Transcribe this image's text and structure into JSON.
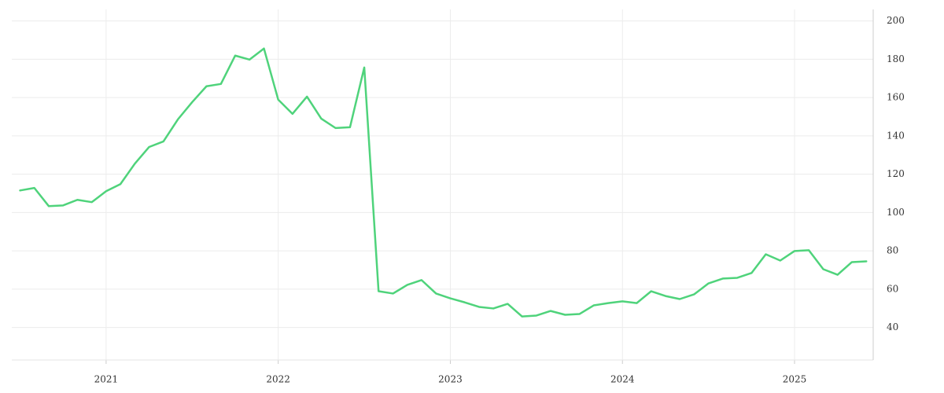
{
  "chart_data": {
    "type": "line",
    "x": [
      2020.5,
      2020.583,
      2020.667,
      2020.75,
      2020.833,
      2020.917,
      2021,
      2021.083,
      2021.167,
      2021.25,
      2021.333,
      2021.417,
      2021.5,
      2021.583,
      2021.667,
      2021.75,
      2021.833,
      2021.917,
      2022,
      2022.083,
      2022.167,
      2022.25,
      2022.333,
      2022.417,
      2022.5,
      2022.583,
      2022.667,
      2022.75,
      2022.833,
      2022.917,
      2023,
      2023.083,
      2023.167,
      2023.25,
      2023.333,
      2023.417,
      2023.5,
      2023.583,
      2023.667,
      2023.75,
      2023.833,
      2023.917,
      2024,
      2024.083,
      2024.167,
      2024.25,
      2024.333,
      2024.417,
      2024.5,
      2024.583,
      2024.667,
      2024.75,
      2024.833,
      2024.917,
      2025,
      2025.083,
      2025.167,
      2025.25,
      2025.333,
      2025.417
    ],
    "series": [
      {
        "color": "#4fd37b",
        "values": [
          111.5,
          112.8,
          103.3,
          103.7,
          106.6,
          105.4,
          111.1,
          114.8,
          125.5,
          134.2,
          137.1,
          148.6,
          157.6,
          165.9,
          167.1,
          181.9,
          179.8,
          185.6,
          158.9,
          151.5,
          160.5,
          149.0,
          144.1,
          144.5,
          175.7,
          58.9,
          57.7,
          62.2,
          64.7,
          57.7,
          55.2,
          53.1,
          50.7,
          49.9,
          52.3,
          45.7,
          46.2,
          48.6,
          46.6,
          47.0,
          51.5,
          52.7,
          53.6,
          52.7,
          58.9,
          56.4,
          54.8,
          57.3,
          63.0,
          65.5,
          65.9,
          68.4,
          78.2,
          74.9,
          79.9,
          80.3,
          70.4,
          67.5,
          74.1,
          74.5
        ]
      }
    ],
    "xlim": [
      2020.452,
      2025.457
    ],
    "xticks": [
      2021,
      2022,
      2023,
      2024,
      2025
    ],
    "ylim": [
      23,
      206
    ],
    "yticks": [
      40,
      60,
      80,
      100,
      120,
      140,
      160,
      180,
      200
    ],
    "grid": true,
    "y_axis_side": "right"
  }
}
